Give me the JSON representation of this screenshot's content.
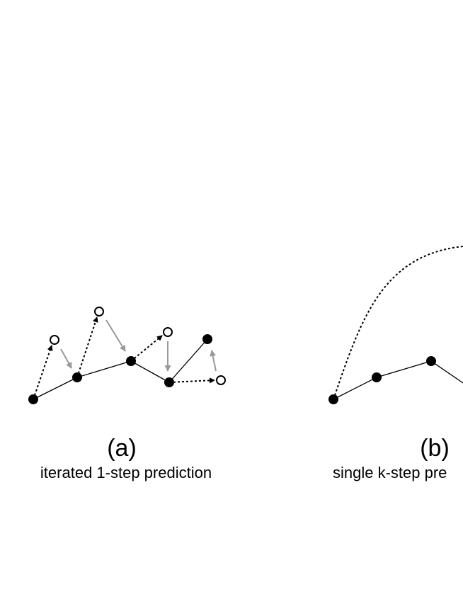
{
  "panels": [
    {
      "label": "(a)",
      "caption": "iterated 1-step prediction"
    },
    {
      "label": "(b)",
      "caption": "single k-step pre"
    }
  ]
}
